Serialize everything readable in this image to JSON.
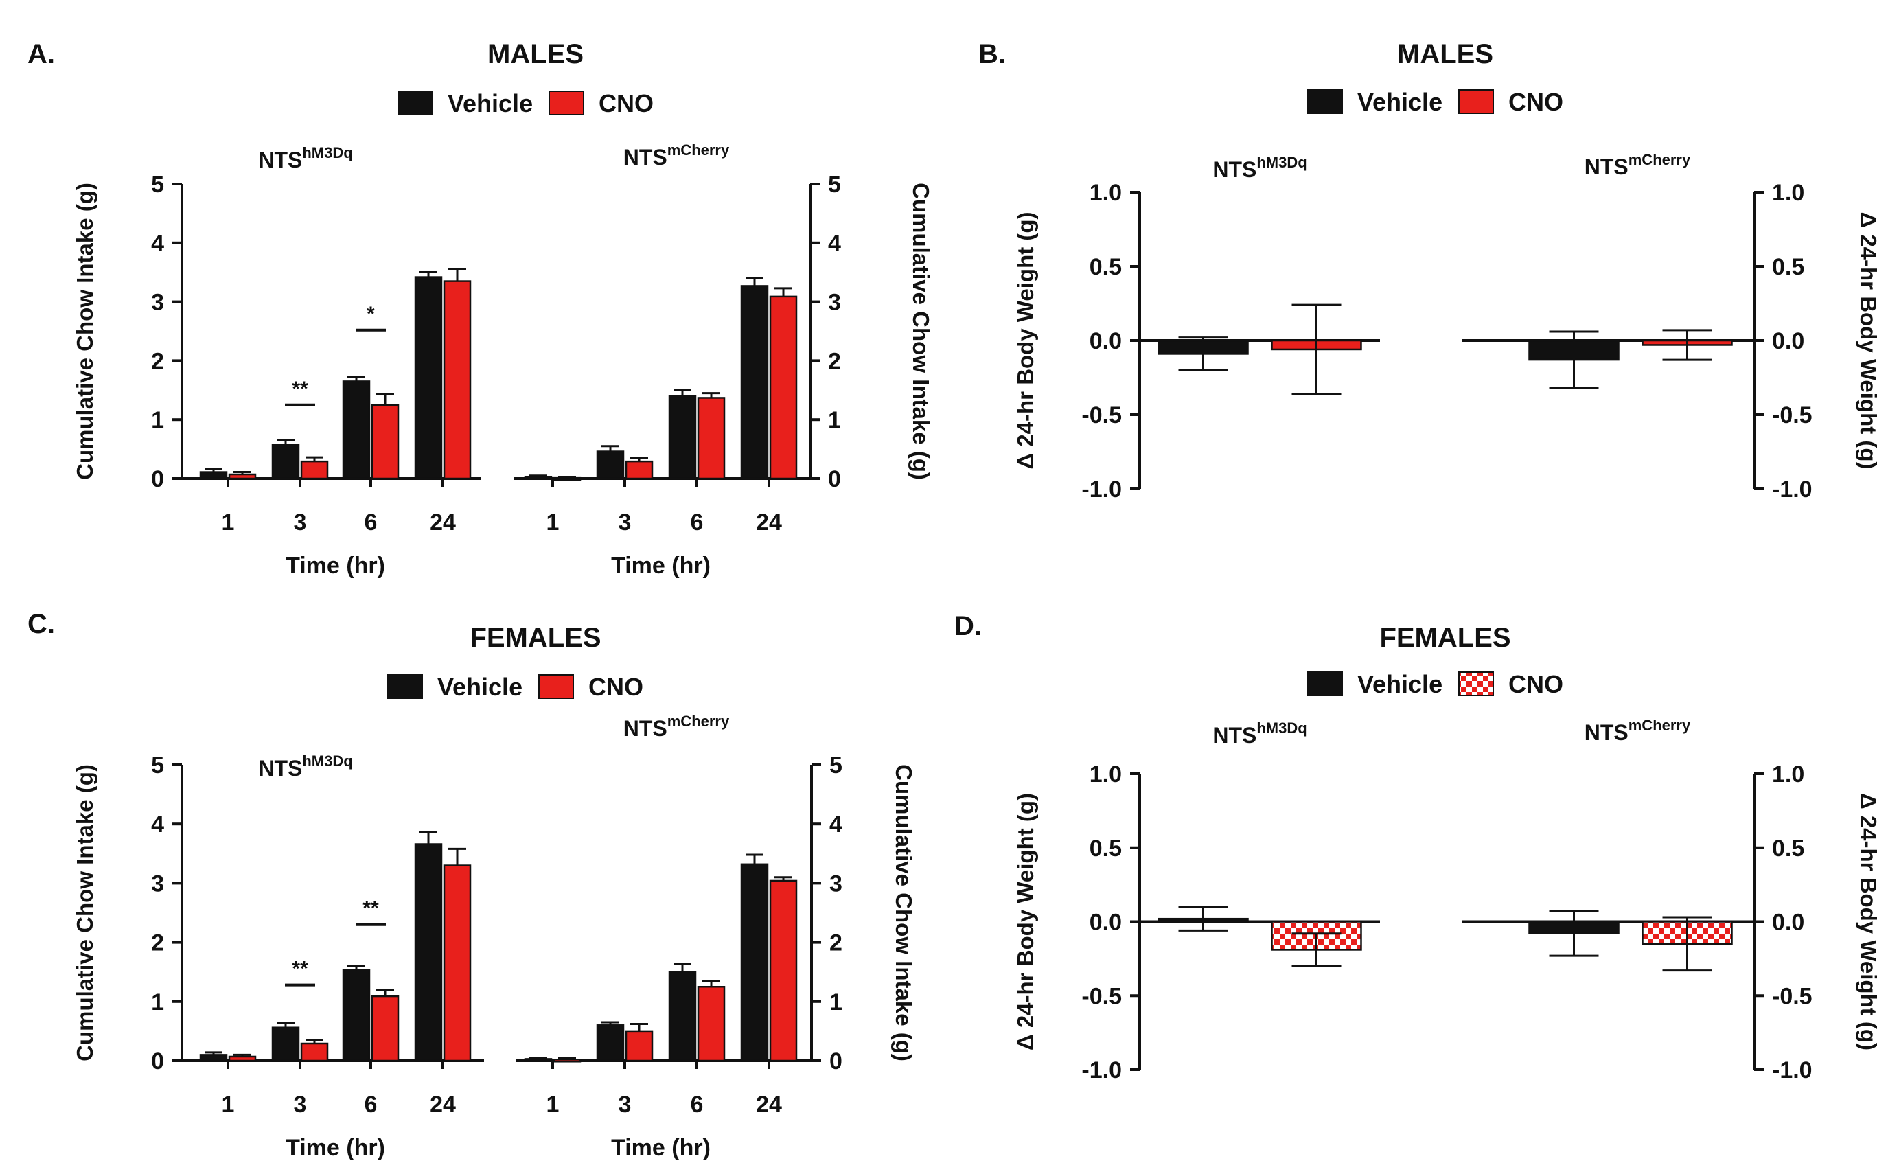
{
  "colors": {
    "vehicle": "#111111",
    "cno": "#e8201c",
    "check_light": "#ffffff",
    "axis": "#111111"
  },
  "panels": [
    {
      "label": "A.",
      "title": "MALES",
      "legend": [
        {
          "label": "Vehicle",
          "fill": "solid-black"
        },
        {
          "label": "CNO",
          "fill": "solid-red"
        }
      ]
    },
    {
      "label": "B.",
      "title": "MALES",
      "legend": [
        {
          "label": "Vehicle",
          "fill": "solid-black"
        },
        {
          "label": "CNO",
          "fill": "solid-red"
        }
      ]
    },
    {
      "label": "C.",
      "title": "FEMALES",
      "legend": [
        {
          "label": "Vehicle",
          "fill": "solid-black"
        },
        {
          "label": "CNO",
          "fill": "solid-red"
        }
      ]
    },
    {
      "label": "D.",
      "title": "FEMALES",
      "legend": [
        {
          "label": "Vehicle",
          "fill": "solid-black"
        },
        {
          "label": "CNO",
          "fill": "checkered-red"
        }
      ]
    }
  ],
  "chart_data": [
    {
      "id": "A-hM3Dq",
      "type": "bar",
      "group_base": "NTS",
      "group_sup": "hM3Dq",
      "xlabel": "Time (hr)",
      "ylabel": "Cumulative Chow Intake (g)",
      "ylim": [
        0,
        5
      ],
      "yticks": [
        "0",
        "1",
        "2",
        "3",
        "4",
        "5"
      ],
      "categories": [
        "1",
        "3",
        "6",
        "24"
      ],
      "series": [
        {
          "name": "Vehicle",
          "values": [
            0.11,
            0.57,
            1.65,
            3.42
          ],
          "errors": [
            0.05,
            0.08,
            0.08,
            0.09
          ]
        },
        {
          "name": "CNO",
          "values": [
            0.07,
            0.29,
            1.25,
            3.35
          ],
          "errors": [
            0.04,
            0.07,
            0.19,
            0.21
          ]
        }
      ],
      "significance": [
        {
          "category": "3",
          "label": "**",
          "y": 1.25
        },
        {
          "category": "6",
          "label": "*",
          "y": 2.52
        }
      ]
    },
    {
      "id": "A-mCherry",
      "type": "bar",
      "group_base": "NTS",
      "group_sup": "mCherry",
      "xlabel": "Time (hr)",
      "ylabel": "Cumulative Chow Intake (g)",
      "ylim": [
        0,
        5
      ],
      "yticks": [
        "0",
        "1",
        "2",
        "3",
        "4",
        "5"
      ],
      "categories": [
        "1",
        "3",
        "6",
        "24"
      ],
      "series": [
        {
          "name": "Vehicle",
          "values": [
            0.03,
            0.46,
            1.4,
            3.27
          ],
          "errors": [
            0.02,
            0.09,
            0.1,
            0.13
          ]
        },
        {
          "name": "CNO",
          "values": [
            0.01,
            0.29,
            1.37,
            3.09
          ],
          "errors": [
            0.01,
            0.06,
            0.08,
            0.14
          ]
        }
      ],
      "significance": []
    },
    {
      "id": "B-hM3Dq",
      "type": "bar",
      "group_base": "NTS",
      "group_sup": "hM3Dq",
      "xlabel": "",
      "ylabel": "Δ 24-hr Body Weight (g)",
      "ylim": [
        -1.0,
        1.0
      ],
      "yticks": [
        "-1.0",
        "-0.5",
        "0.0",
        "0.5",
        "1.0"
      ],
      "categories": [
        ""
      ],
      "series": [
        {
          "name": "Vehicle",
          "values": [
            -0.09
          ],
          "errors": [
            0.11
          ]
        },
        {
          "name": "CNO",
          "values": [
            -0.06
          ],
          "errors": [
            0.3
          ]
        }
      ],
      "significance": []
    },
    {
      "id": "B-mCherry",
      "type": "bar",
      "group_base": "NTS",
      "group_sup": "mCherry",
      "xlabel": "",
      "ylabel": "Δ 24-hr Body Weight (g)",
      "ylim": [
        -1.0,
        1.0
      ],
      "yticks": [
        "-1.0",
        "-0.5",
        "0.0",
        "0.5",
        "1.0"
      ],
      "categories": [
        ""
      ],
      "series": [
        {
          "name": "Vehicle",
          "values": [
            -0.13
          ],
          "errors": [
            0.19
          ]
        },
        {
          "name": "CNO",
          "values": [
            -0.03
          ],
          "errors": [
            0.1
          ]
        }
      ],
      "significance": []
    },
    {
      "id": "C-hM3Dq",
      "type": "bar",
      "group_base": "NTS",
      "group_sup": "hM3Dq",
      "xlabel": "Time (hr)",
      "ylabel": "Cumulative Chow Intake (g)",
      "ylim": [
        0,
        5
      ],
      "yticks": [
        "0",
        "1",
        "2",
        "3",
        "4",
        "5"
      ],
      "categories": [
        "1",
        "3",
        "6",
        "24"
      ],
      "series": [
        {
          "name": "Vehicle",
          "values": [
            0.1,
            0.56,
            1.53,
            3.66
          ],
          "errors": [
            0.04,
            0.08,
            0.07,
            0.2
          ]
        },
        {
          "name": "CNO",
          "values": [
            0.07,
            0.29,
            1.09,
            3.3
          ],
          "errors": [
            0.03,
            0.06,
            0.1,
            0.28
          ]
        }
      ],
      "significance": [
        {
          "category": "3",
          "label": "**",
          "y": 1.28
        },
        {
          "category": "6",
          "label": "**",
          "y": 2.3
        }
      ]
    },
    {
      "id": "C-mCherry",
      "type": "bar",
      "group_base": "NTS",
      "group_sup": "mCherry",
      "xlabel": "Time (hr)",
      "ylabel": "Cumulative Chow Intake (g)",
      "ylim": [
        0,
        5
      ],
      "yticks": [
        "0",
        "1",
        "2",
        "3",
        "4",
        "5"
      ],
      "categories": [
        "1",
        "3",
        "6",
        "24"
      ],
      "series": [
        {
          "name": "Vehicle",
          "values": [
            0.03,
            0.6,
            1.5,
            3.32
          ],
          "errors": [
            0.02,
            0.05,
            0.13,
            0.16
          ]
        },
        {
          "name": "CNO",
          "values": [
            0.02,
            0.5,
            1.25,
            3.04
          ],
          "errors": [
            0.02,
            0.12,
            0.09,
            0.06
          ]
        }
      ],
      "significance": []
    },
    {
      "id": "D-hM3Dq",
      "type": "bar",
      "group_base": "NTS",
      "group_sup": "hM3Dq",
      "xlabel": "",
      "ylabel": "Δ 24-hr Body Weight (g)",
      "ylim": [
        -1.0,
        1.0
      ],
      "yticks": [
        "-1.0",
        "-0.5",
        "0.0",
        "0.5",
        "1.0"
      ],
      "categories": [
        ""
      ],
      "series": [
        {
          "name": "Vehicle",
          "values": [
            0.02
          ],
          "errors": [
            0.08
          ]
        },
        {
          "name": "CNO",
          "values": [
            -0.19
          ],
          "errors": [
            0.11
          ]
        }
      ],
      "significance": []
    },
    {
      "id": "D-mCherry",
      "type": "bar",
      "group_base": "NTS",
      "group_sup": "mCherry",
      "xlabel": "",
      "ylabel": "Δ 24-hr Body Weight (g)",
      "ylim": [
        -1.0,
        1.0
      ],
      "yticks": [
        "-1.0",
        "-0.5",
        "0.0",
        "0.5",
        "1.0"
      ],
      "categories": [
        ""
      ],
      "series": [
        {
          "name": "Vehicle",
          "values": [
            -0.08
          ],
          "errors": [
            0.15
          ]
        },
        {
          "name": "CNO",
          "values": [
            -0.15
          ],
          "errors": [
            0.18
          ]
        }
      ],
      "significance": []
    }
  ]
}
